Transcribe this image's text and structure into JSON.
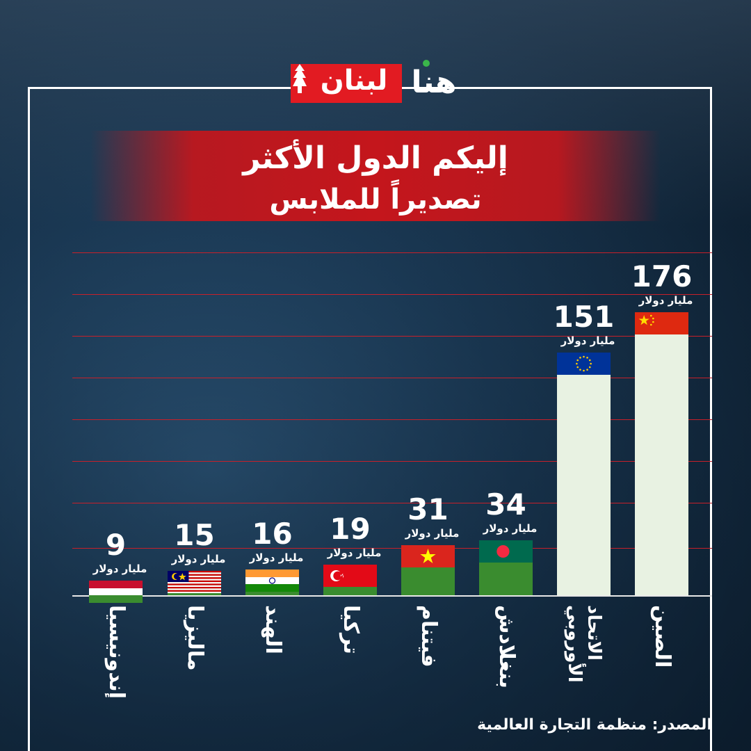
{
  "logo": {
    "huna": "هنا",
    "lebnan": "لبنان"
  },
  "title": {
    "line1": "إليكم الدول الأكثر",
    "line2": "تصديراً للملابس"
  },
  "source": "المصدر: منظمة التجارة العالمية",
  "colors": {
    "brand_red": "#e21b22",
    "gridline": "#c8202a",
    "bar_green": "#3a8c2f",
    "bar_light": "#e8f2e2"
  },
  "chart_data": {
    "type": "bar",
    "title": "إليكم الدول الأكثر تصديراً للملابس",
    "xlabel": "",
    "ylabel": "",
    "unit": "مليار دولار",
    "ylim": [
      0,
      200
    ],
    "grid": true,
    "legend": "none",
    "categories": [
      "إندونيسيا",
      "ماليزيا",
      "الهند",
      "تركيا",
      "فيتنام",
      "بنغلادش",
      "الاتحاد الأوروبي",
      "الصين"
    ],
    "values": [
      9,
      15,
      16,
      19,
      31,
      34,
      151,
      176
    ],
    "bar_colors": [
      "#3a8c2f",
      "#3a8c2f",
      "#3a8c2f",
      "#3a8c2f",
      "#3a8c2f",
      "#3a8c2f",
      "#e8f2e2",
      "#e8f2e2"
    ],
    "flags": [
      "indonesia-flag-icon",
      "malaysia-flag-icon",
      "india-flag-icon",
      "turkey-flag-icon",
      "vietnam-flag-icon",
      "bangladesh-flag-icon",
      "eu-flag-icon",
      "china-flag-icon"
    ]
  }
}
